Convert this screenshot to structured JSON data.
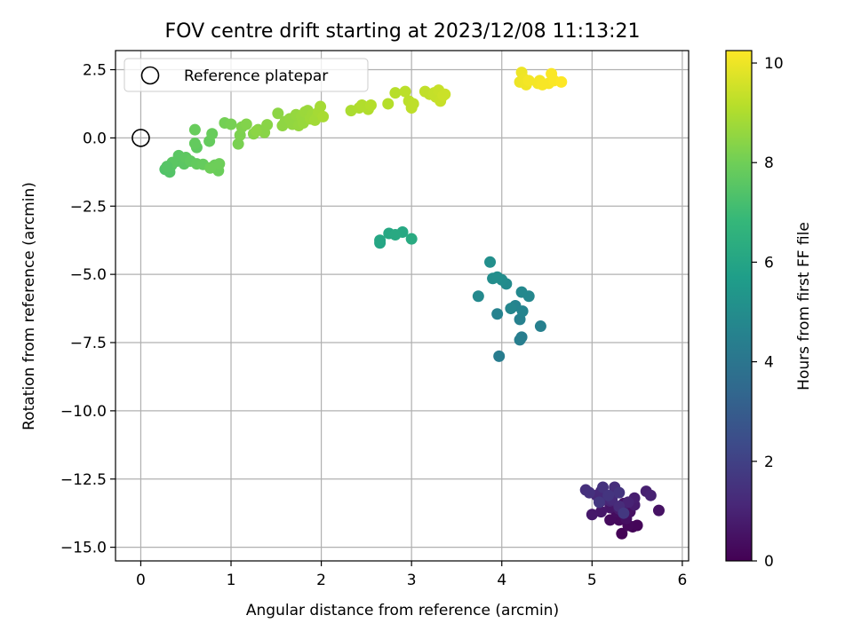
{
  "chart_data": {
    "type": "scatter",
    "title": "FOV centre drift starting at 2023/12/08 11:13:21",
    "xlabel": "Angular distance from reference (arcmin)",
    "ylabel": "Rotation from reference (arcmin)",
    "xlim": [
      -0.28,
      6.07
    ],
    "ylim": [
      -15.5,
      3.2
    ],
    "xticks": [
      0,
      1,
      2,
      3,
      4,
      5,
      6
    ],
    "xtick_labels": [
      "0",
      "1",
      "2",
      "3",
      "4",
      "5",
      "6"
    ],
    "yticks": [
      2.5,
      0,
      -2.5,
      -5,
      -7.5,
      -10,
      -12.5,
      -15
    ],
    "ytick_labels": [
      "2.5",
      "0.0",
      "−2.5",
      "−5.0",
      "−7.5",
      "−10.0",
      "−12.5",
      "−15.0"
    ],
    "grid": true,
    "legend": {
      "position": "top-left",
      "entries": [
        "Reference platepar"
      ]
    },
    "reference_point": {
      "x": 0,
      "y": 0,
      "marker": "open-circle"
    },
    "colorbar": {
      "label": "Hours from first FF file",
      "range": [
        0,
        10.25
      ],
      "ticks": [
        0,
        2,
        4,
        6,
        8,
        10
      ],
      "tick_labels": [
        "0",
        "2",
        "4",
        "6",
        "8",
        "10"
      ],
      "colormap": "viridis",
      "colors": [
        "#440154",
        "#482878",
        "#3e4989",
        "#31688e",
        "#26828e",
        "#1f9e89",
        "#35b779",
        "#6ece58",
        "#b5de2b",
        "#fde725"
      ]
    },
    "series": [
      {
        "values": [
          [
            5.33,
            -14.5,
            0.05
          ],
          [
            5.45,
            -14.25,
            0.1
          ],
          [
            5.5,
            -14.2,
            0.15
          ],
          [
            5.4,
            -14.2,
            0.2
          ],
          [
            5.3,
            -14.0,
            0.25
          ],
          [
            5.2,
            -14.0,
            0.3
          ],
          [
            5.27,
            -13.7,
            0.35
          ],
          [
            5.38,
            -13.95,
            0.4
          ],
          [
            5.42,
            -13.7,
            0.45
          ],
          [
            5.74,
            -13.65,
            0.5
          ],
          [
            5.35,
            -13.4,
            0.55
          ],
          [
            5.2,
            -13.55,
            0.6
          ],
          [
            5.1,
            -13.7,
            0.65
          ],
          [
            5.0,
            -13.8,
            0.7
          ],
          [
            5.3,
            -13.6,
            0.75
          ],
          [
            5.47,
            -13.45,
            0.8
          ],
          [
            5.47,
            -13.2,
            0.85
          ],
          [
            5.6,
            -12.95,
            0.9
          ],
          [
            5.65,
            -13.1,
            0.95
          ],
          [
            5.4,
            -13.35,
            1.0
          ],
          [
            5.2,
            -13.3,
            1.05
          ],
          [
            5.1,
            -13.3,
            1.1
          ],
          [
            5.05,
            -13.1,
            1.15
          ],
          [
            5.1,
            -12.95,
            1.2
          ],
          [
            5.22,
            -13.25,
            1.25
          ],
          [
            5.3,
            -13.5,
            1.3
          ],
          [
            5.25,
            -12.8,
            1.35
          ],
          [
            4.93,
            -12.9,
            1.4
          ],
          [
            4.97,
            -13.0,
            1.45
          ],
          [
            5.12,
            -12.8,
            1.5
          ],
          [
            5.3,
            -13.0,
            1.55
          ],
          [
            5.18,
            -13.1,
            1.6
          ],
          [
            5.08,
            -13.35,
            1.65
          ],
          [
            5.35,
            -13.75,
            1.7
          ]
        ]
      },
      {
        "values": [
          [
            3.97,
            -8.0,
            4.3
          ],
          [
            4.22,
            -7.3,
            4.35
          ],
          [
            4.2,
            -7.4,
            4.4
          ],
          [
            4.43,
            -6.9,
            4.45
          ],
          [
            4.2,
            -6.65,
            4.5
          ],
          [
            3.95,
            -6.45,
            4.55
          ],
          [
            4.15,
            -6.15,
            4.6
          ],
          [
            4.23,
            -6.35,
            4.65
          ],
          [
            4.1,
            -6.25,
            4.7
          ],
          [
            4.3,
            -5.8,
            4.75
          ],
          [
            4.22,
            -5.65,
            4.8
          ],
          [
            3.74,
            -5.8,
            4.85
          ],
          [
            4.05,
            -5.35,
            4.9
          ],
          [
            4.0,
            -5.2,
            4.95
          ],
          [
            3.9,
            -5.15,
            5.0
          ],
          [
            3.95,
            -5.1,
            5.05
          ],
          [
            3.87,
            -4.55,
            5.1
          ]
        ]
      },
      {
        "values": [
          [
            2.65,
            -3.85,
            6.0
          ],
          [
            2.65,
            -3.75,
            6.05
          ],
          [
            2.75,
            -3.5,
            6.1
          ],
          [
            2.9,
            -3.45,
            6.15
          ],
          [
            2.82,
            -3.55,
            6.2
          ],
          [
            3.0,
            -3.7,
            6.25
          ]
        ]
      },
      {
        "values": [
          [
            0.27,
            -1.15,
            7.4
          ],
          [
            0.32,
            -1.25,
            7.45
          ],
          [
            0.34,
            -1.0,
            7.5
          ],
          [
            0.4,
            -0.85,
            7.55
          ],
          [
            0.42,
            -0.65,
            7.6
          ],
          [
            0.48,
            -0.95,
            7.6
          ],
          [
            0.5,
            -0.72,
            7.65
          ],
          [
            0.55,
            -0.85,
            7.7
          ],
          [
            0.62,
            -0.35,
            7.7
          ],
          [
            0.6,
            -0.2,
            7.75
          ],
          [
            0.62,
            -0.95,
            7.75
          ],
          [
            0.69,
            -0.97,
            7.8
          ],
          [
            0.76,
            -0.12,
            7.8
          ],
          [
            0.79,
            0.15,
            7.85
          ],
          [
            0.6,
            0.3,
            7.85
          ],
          [
            0.82,
            -1.0,
            7.9
          ],
          [
            0.86,
            -1.2,
            7.9
          ],
          [
            0.87,
            -0.95,
            7.95
          ],
          [
            0.35,
            -0.9,
            7.6
          ],
          [
            0.29,
            -1.05,
            7.5
          ],
          [
            0.77,
            -1.1,
            7.95
          ]
        ]
      },
      {
        "values": [
          [
            0.93,
            0.55,
            8.05
          ],
          [
            1.0,
            0.5,
            8.1
          ],
          [
            1.08,
            -0.22,
            8.15
          ],
          [
            1.1,
            0.1,
            8.2
          ],
          [
            1.12,
            0.4,
            8.25
          ],
          [
            1.17,
            0.5,
            8.3
          ],
          [
            1.25,
            0.15,
            8.35
          ],
          [
            1.3,
            0.3,
            8.35
          ],
          [
            1.37,
            0.2,
            8.4
          ],
          [
            1.4,
            0.48,
            8.4
          ],
          [
            1.28,
            0.25,
            8.45
          ],
          [
            1.52,
            0.9,
            8.45
          ],
          [
            1.57,
            0.45,
            8.5
          ],
          [
            1.6,
            0.6,
            8.5
          ],
          [
            1.65,
            0.7,
            8.55
          ],
          [
            1.68,
            0.5,
            8.55
          ],
          [
            1.72,
            0.85,
            8.6
          ],
          [
            1.75,
            0.45,
            8.6
          ],
          [
            1.78,
            0.8,
            8.65
          ],
          [
            1.8,
            0.55,
            8.65
          ],
          [
            1.82,
            0.95,
            8.7
          ],
          [
            1.85,
            1.0,
            8.7
          ],
          [
            1.88,
            0.7,
            8.75
          ],
          [
            1.9,
            0.85,
            8.75
          ],
          [
            1.93,
            0.65,
            8.8
          ],
          [
            1.95,
            0.75,
            8.8
          ],
          [
            1.97,
            0.95,
            8.85
          ],
          [
            1.99,
            1.15,
            8.85
          ],
          [
            2.02,
            0.78,
            8.9
          ]
        ]
      },
      {
        "values": [
          [
            2.33,
            1.0,
            8.95
          ],
          [
            2.42,
            1.1,
            9.0
          ],
          [
            2.45,
            1.2,
            9.05
          ],
          [
            2.52,
            1.05,
            9.05
          ],
          [
            2.55,
            1.2,
            9.1
          ],
          [
            2.74,
            1.25,
            9.1
          ],
          [
            2.82,
            1.65,
            9.15
          ],
          [
            2.93,
            1.7,
            9.2
          ],
          [
            2.97,
            1.35,
            9.2
          ],
          [
            3.0,
            1.1,
            9.25
          ],
          [
            3.02,
            1.25,
            9.25
          ],
          [
            3.15,
            1.7,
            9.3
          ],
          [
            3.2,
            1.6,
            9.3
          ],
          [
            3.25,
            1.65,
            9.35
          ],
          [
            3.27,
            1.5,
            9.35
          ],
          [
            3.3,
            1.75,
            9.4
          ],
          [
            3.32,
            1.35,
            9.4
          ],
          [
            3.35,
            1.55,
            9.45
          ],
          [
            3.37,
            1.6,
            9.45
          ]
        ]
      },
      {
        "values": [
          [
            4.2,
            2.05,
            10.0
          ],
          [
            4.22,
            2.4,
            10.0
          ],
          [
            4.25,
            2.15,
            10.05
          ],
          [
            4.27,
            1.95,
            10.05
          ],
          [
            4.3,
            2.1,
            10.1
          ],
          [
            4.4,
            2.0,
            10.1
          ],
          [
            4.42,
            2.1,
            10.1
          ],
          [
            4.45,
            1.95,
            10.15
          ],
          [
            4.52,
            2.0,
            10.15
          ],
          [
            4.55,
            2.35,
            10.2
          ],
          [
            4.58,
            2.1,
            10.2
          ],
          [
            4.66,
            2.05,
            10.25
          ]
        ]
      }
    ]
  }
}
